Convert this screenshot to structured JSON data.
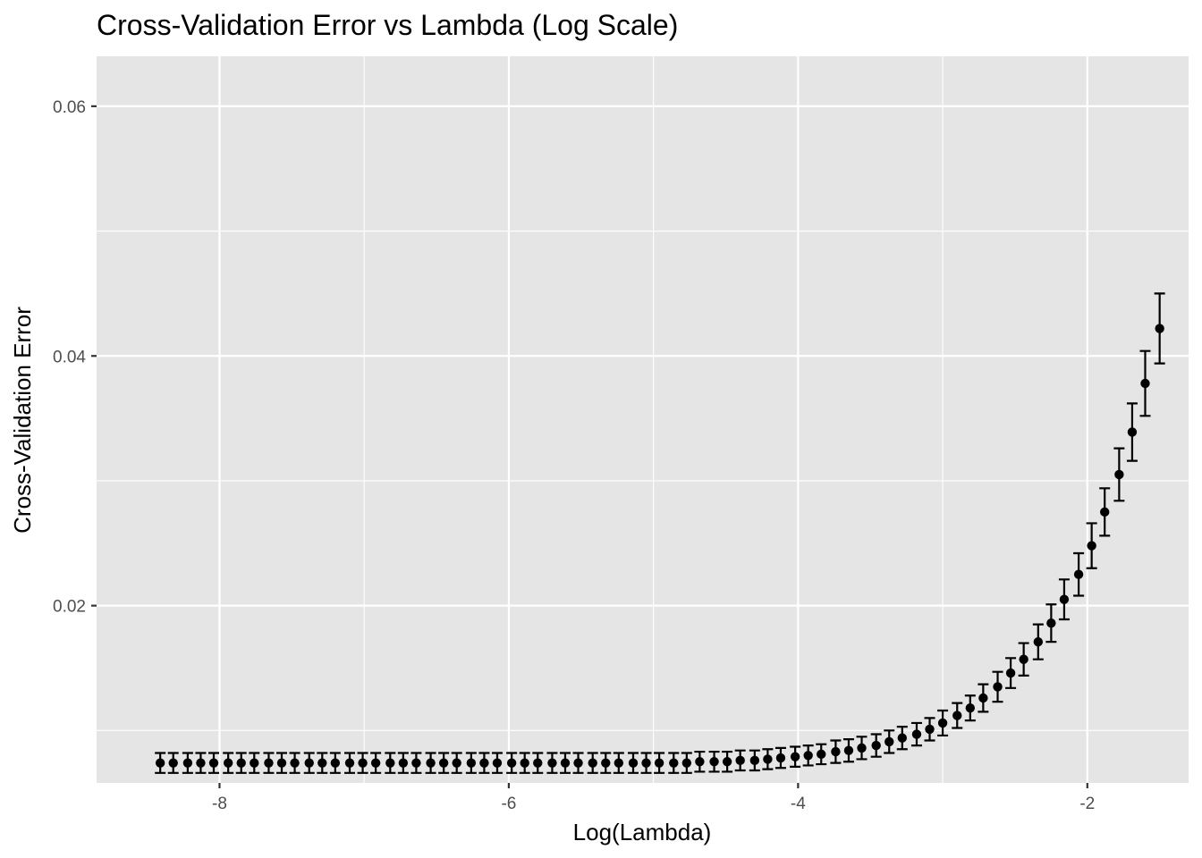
{
  "chart_data": {
    "type": "scatter",
    "title": "Cross-Validation Error vs Lambda (Log Scale)",
    "xlabel": "Log(Lambda)",
    "ylabel": "Cross-Validation Error",
    "xlim": [
      -8.85,
      -1.3
    ],
    "ylim": [
      0.0058,
      0.064
    ],
    "x_ticks": [
      -8,
      -6,
      -4,
      -2
    ],
    "x_tick_labels": [
      "-8",
      "-6",
      "-4",
      "-2"
    ],
    "y_ticks": [
      0.02,
      0.04,
      0.06
    ],
    "y_tick_labels": [
      "0.02",
      "0.04",
      "0.06"
    ],
    "grid": true,
    "legend": "none",
    "point_color": "#000000",
    "panel_color": "#e5e5e5",
    "x": [
      -8.41,
      -8.32,
      -8.22,
      -8.13,
      -8.04,
      -7.94,
      -7.85,
      -7.76,
      -7.66,
      -7.57,
      -7.48,
      -7.38,
      -7.29,
      -7.2,
      -7.1,
      -7.01,
      -6.92,
      -6.82,
      -6.73,
      -6.64,
      -6.54,
      -6.45,
      -6.36,
      -6.26,
      -6.17,
      -6.08,
      -5.98,
      -5.89,
      -5.8,
      -5.7,
      -5.61,
      -5.52,
      -5.42,
      -5.33,
      -5.24,
      -5.14,
      -5.05,
      -4.96,
      -4.86,
      -4.77,
      -4.68,
      -4.58,
      -4.49,
      -4.4,
      -4.3,
      -4.21,
      -4.12,
      -4.02,
      -3.93,
      -3.84,
      -3.74,
      -3.65,
      -3.56,
      -3.46,
      -3.37,
      -3.28,
      -3.18,
      -3.09,
      -3.0,
      -2.9,
      -2.81,
      -2.72,
      -2.62,
      -2.53,
      -2.44,
      -2.34,
      -2.25,
      -2.16,
      -2.06,
      -1.97,
      -1.88,
      -1.78,
      -1.69,
      -1.6,
      -1.5
    ],
    "y": [
      0.0074,
      0.0074,
      0.0074,
      0.0074,
      0.0074,
      0.0074,
      0.0074,
      0.0074,
      0.0074,
      0.0074,
      0.0074,
      0.0074,
      0.0074,
      0.0074,
      0.0074,
      0.0074,
      0.0074,
      0.0074,
      0.0074,
      0.0074,
      0.0074,
      0.0074,
      0.0074,
      0.0074,
      0.0074,
      0.0074,
      0.0074,
      0.0074,
      0.0074,
      0.0074,
      0.0074,
      0.0074,
      0.0074,
      0.0074,
      0.0074,
      0.0074,
      0.0074,
      0.0074,
      0.0074,
      0.0074,
      0.0075,
      0.0075,
      0.0075,
      0.0076,
      0.0076,
      0.0077,
      0.0078,
      0.0079,
      0.008,
      0.0081,
      0.0083,
      0.0084,
      0.0086,
      0.0088,
      0.0091,
      0.0094,
      0.0097,
      0.0101,
      0.0106,
      0.0112,
      0.0118,
      0.0126,
      0.0135,
      0.0146,
      0.0157,
      0.0171,
      0.0186,
      0.0205,
      0.0225,
      0.0248,
      0.0275,
      0.0305,
      0.0339,
      0.0378,
      0.0422
    ],
    "err_low": [
      0.0066,
      0.0066,
      0.0066,
      0.0066,
      0.0066,
      0.0066,
      0.0066,
      0.0066,
      0.0066,
      0.0066,
      0.0066,
      0.0066,
      0.0066,
      0.0066,
      0.0066,
      0.0066,
      0.0066,
      0.0066,
      0.0066,
      0.0066,
      0.0066,
      0.0066,
      0.0066,
      0.0066,
      0.0066,
      0.0066,
      0.0066,
      0.0066,
      0.0066,
      0.0066,
      0.0066,
      0.0066,
      0.0066,
      0.0066,
      0.0066,
      0.0066,
      0.0066,
      0.0066,
      0.0066,
      0.0066,
      0.0067,
      0.0067,
      0.0067,
      0.0068,
      0.0068,
      0.0069,
      0.007,
      0.0071,
      0.0072,
      0.0073,
      0.0074,
      0.0075,
      0.0077,
      0.0079,
      0.0082,
      0.0085,
      0.0088,
      0.0092,
      0.0096,
      0.0102,
      0.0108,
      0.0115,
      0.0123,
      0.0134,
      0.0144,
      0.0157,
      0.0171,
      0.0189,
      0.0208,
      0.023,
      0.0256,
      0.0284,
      0.0316,
      0.0352,
      0.0394
    ],
    "err_high": [
      0.0082,
      0.0082,
      0.0082,
      0.0082,
      0.0082,
      0.0082,
      0.0082,
      0.0082,
      0.0082,
      0.0082,
      0.0082,
      0.0082,
      0.0082,
      0.0082,
      0.0082,
      0.0082,
      0.0082,
      0.0082,
      0.0082,
      0.0082,
      0.0082,
      0.0082,
      0.0082,
      0.0082,
      0.0082,
      0.0082,
      0.0082,
      0.0082,
      0.0082,
      0.0082,
      0.0082,
      0.0082,
      0.0082,
      0.0082,
      0.0082,
      0.0082,
      0.0082,
      0.0082,
      0.0082,
      0.0082,
      0.0083,
      0.0083,
      0.0083,
      0.0084,
      0.0084,
      0.0085,
      0.0086,
      0.0087,
      0.0088,
      0.0089,
      0.0092,
      0.0093,
      0.0095,
      0.0097,
      0.01,
      0.0103,
      0.0106,
      0.011,
      0.0116,
      0.0122,
      0.0128,
      0.0137,
      0.0147,
      0.0158,
      0.017,
      0.0185,
      0.0201,
      0.0221,
      0.0242,
      0.0266,
      0.0294,
      0.0326,
      0.0362,
      0.0404,
      0.045
    ]
  }
}
